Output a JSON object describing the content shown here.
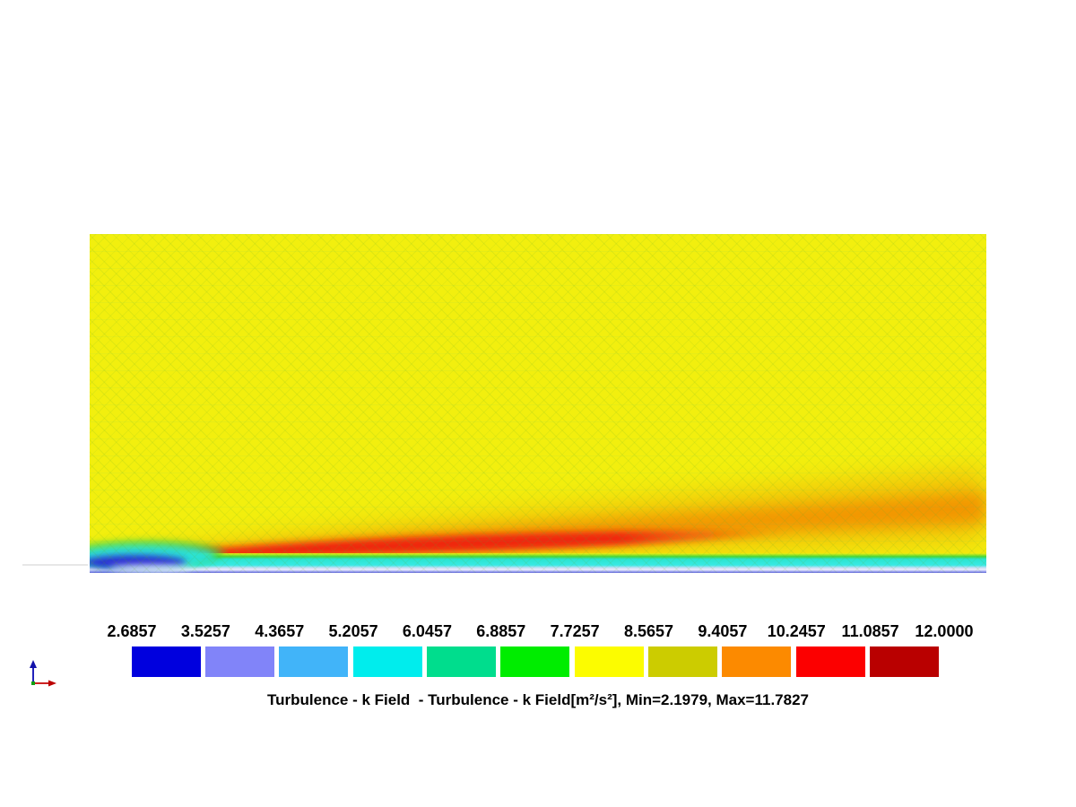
{
  "field": {
    "name": "Turbulence - k Field",
    "units": "m²/s²",
    "min_label": "2.1979",
    "max_label": "11.7827"
  },
  "colorbar": {
    "tick_labels": [
      "2.6857",
      "3.5257",
      "4.3657",
      "5.2057",
      "6.0457",
      "6.8857",
      "7.7257",
      "8.5657",
      "9.4057",
      "10.2457",
      "11.0857",
      "12.0000"
    ],
    "swatch_colors": [
      "#0000de",
      "#8184f9",
      "#41b4f9",
      "#00eded",
      "#00dd8d",
      "#00ed00",
      "#fcfc00",
      "#cccc00",
      "#fc8a00",
      "#fc0000",
      "#b90000"
    ],
    "caption": "Turbulence - k Field  - Turbulence - k Field[m²/s²], Min=2.1979, Max=11.7827"
  },
  "icons": {
    "orientation_axes": "orientation-axes-icon",
    "axis_x_color": "#cc2222",
    "axis_y_color": "#2222bb",
    "origin_color": "#11a011"
  },
  "field_colors": {
    "bulk_yellow": "#f2ef0e",
    "streak_red": "#ee2410",
    "band_orange": "#f29000",
    "near_wall_cyan": "#2ae2d6",
    "wall_white": "#f3f6ff",
    "recirculation_blue": "#2a2ad2",
    "bottom_edge_blue": "#6b71db",
    "wall_line_grey": "#e7e7e7"
  },
  "chart_data": {
    "type": "heatmap",
    "title": "Turbulence - k Field",
    "variable": "Turbulence - k Field",
    "units": "m²/s²",
    "min": 2.1979,
    "max": 11.7827,
    "colorbar_ticks": [
      2.6857,
      3.5257,
      4.3657,
      5.2057,
      6.0457,
      6.8857,
      7.7257,
      8.5657,
      9.4057,
      10.2457,
      11.0857,
      12.0
    ],
    "colorbar_colors": [
      "#0000de",
      "#8184f9",
      "#41b4f9",
      "#00eded",
      "#00dd8d",
      "#00ed00",
      "#fcfc00",
      "#cccc00",
      "#fc8a00",
      "#fc0000",
      "#b90000"
    ],
    "legend_position": "bottom",
    "grid": "triangulated mesh overlay visible",
    "regions": [
      {
        "area": "bulk of domain (uniform background)",
        "approx_value": 7.3,
        "color": "#f2ef0e"
      },
      {
        "area": "wake streak rising from lower-left, fading downstream",
        "approx_value_range": [
          10.2,
          11.8
        ],
        "color": "#ee2410"
      },
      {
        "area": "diffuse downstream band toward upper right edge",
        "approx_value_range": [
          8.6,
          10.2
        ],
        "color": "#f29000"
      },
      {
        "area": "thin near-wall layer along bottom boundary",
        "approx_value_range": [
          5.2,
          6.9
        ],
        "color": "#2ae2d6"
      },
      {
        "area": "bottom-left corner recirculation pocket",
        "approx_value_range": [
          2.2,
          4.4
        ],
        "color": "#2a2ad2"
      }
    ]
  }
}
